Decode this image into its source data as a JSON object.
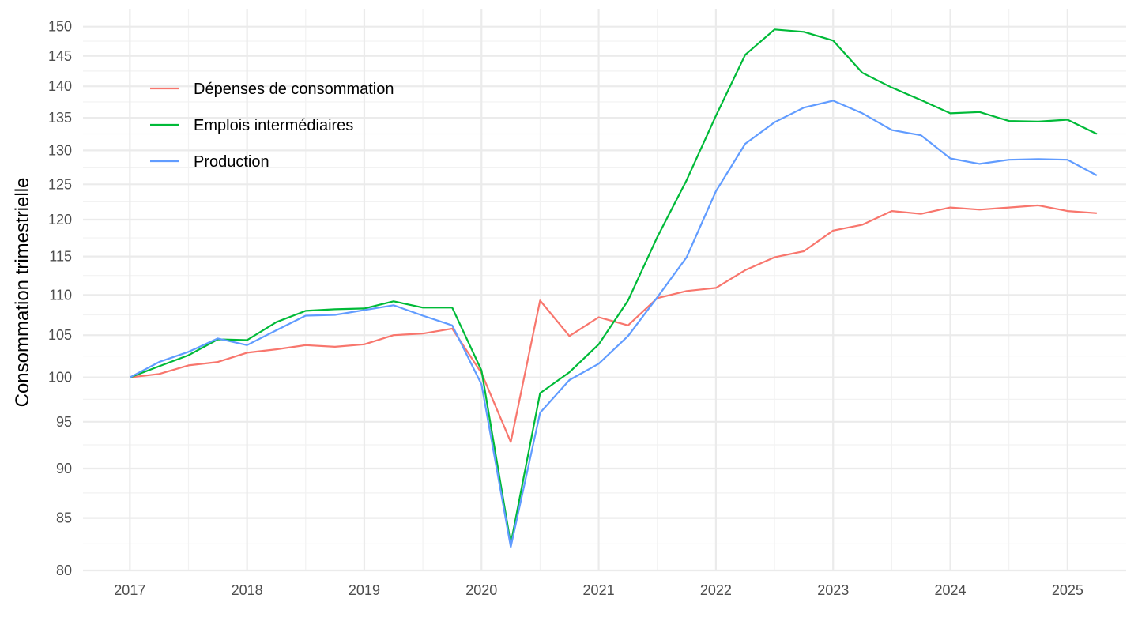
{
  "chart_data": {
    "type": "line",
    "title": "",
    "xlabel": "",
    "ylabel": "Consommation trimestrielle",
    "y_scale": "log",
    "ylim": [
      80,
      153
    ],
    "xlim": [
      2016.6,
      2025.5
    ],
    "y_ticks": [
      80,
      85,
      90,
      95,
      100,
      105,
      110,
      115,
      120,
      125,
      130,
      135,
      140,
      145,
      150
    ],
    "x_ticks": [
      2017,
      2018,
      2019,
      2020,
      2021,
      2022,
      2023,
      2024,
      2025
    ],
    "grid": true,
    "legend_position": "top-left",
    "x": [
      2017.0,
      2017.25,
      2017.5,
      2017.75,
      2018.0,
      2018.25,
      2018.5,
      2018.75,
      2019.0,
      2019.25,
      2019.5,
      2019.75,
      2020.0,
      2020.25,
      2020.5,
      2020.75,
      2021.0,
      2021.25,
      2021.5,
      2021.75,
      2022.0,
      2022.25,
      2022.5,
      2022.75,
      2023.0,
      2023.25,
      2023.5,
      2023.75,
      2024.0,
      2024.25,
      2024.5,
      2024.75,
      2025.0,
      2025.25
    ],
    "series": [
      {
        "name": "Dépenses de consommation",
        "color": "#F8766D",
        "values": [
          100.0,
          100.4,
          101.4,
          101.8,
          102.9,
          103.3,
          103.8,
          103.6,
          103.9,
          105.0,
          105.2,
          105.8,
          100.5,
          92.8,
          109.3,
          104.9,
          107.2,
          106.2,
          109.6,
          110.5,
          110.9,
          113.2,
          114.9,
          115.7,
          118.5,
          119.3,
          121.2,
          120.8,
          121.7,
          121.4,
          121.7,
          122.0,
          121.2,
          120.9
        ]
      },
      {
        "name": "Emplois intermédiaires",
        "color": "#00BA38",
        "values": [
          100.0,
          101.3,
          102.6,
          104.5,
          104.4,
          106.6,
          108.0,
          108.2,
          108.3,
          109.2,
          108.4,
          108.4,
          100.8,
          82.5,
          98.2,
          100.6,
          103.9,
          109.3,
          117.6,
          125.6,
          135.3,
          145.2,
          149.5,
          149.1,
          147.6,
          142.2,
          139.8,
          137.8,
          135.7,
          135.9,
          134.5,
          134.4,
          134.7,
          132.5
        ]
      },
      {
        "name": "Production",
        "color": "#619CFF",
        "values": [
          100.0,
          101.8,
          103.0,
          104.6,
          103.8,
          105.6,
          107.4,
          107.5,
          108.1,
          108.7,
          107.4,
          106.2,
          99.2,
          82.2,
          96.0,
          99.7,
          101.6,
          104.9,
          109.7,
          114.9,
          124.0,
          131.0,
          134.3,
          136.6,
          137.7,
          135.7,
          133.1,
          132.3,
          128.8,
          128.0,
          128.6,
          128.7,
          128.6,
          126.3
        ]
      }
    ]
  }
}
